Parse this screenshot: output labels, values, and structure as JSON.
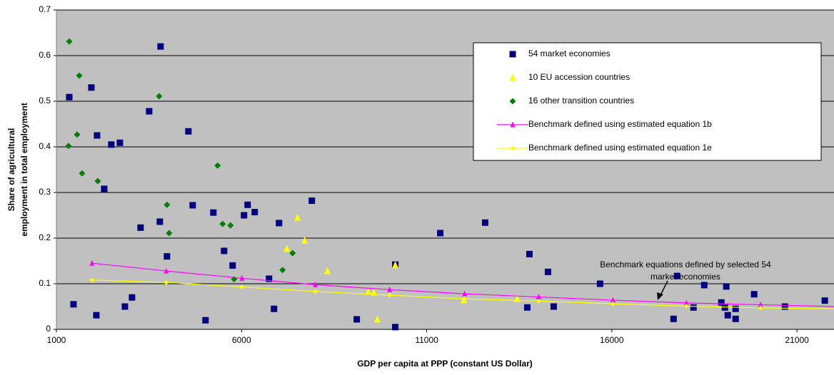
{
  "chart_data": {
    "type": "scatter",
    "xlabel": "GDP per capita at PPP (constant US Dollar)",
    "ylabel": [
      "Share of agricultural",
      "employment in total employment"
    ],
    "xlim": [
      1000,
      22000
    ],
    "xticks": [
      1000,
      6000,
      11000,
      16000,
      21000
    ],
    "ylim": [
      0,
      0.7
    ],
    "yticks": [
      0,
      0.1,
      0.2,
      0.3,
      0.4,
      0.5,
      0.6,
      0.7
    ],
    "grid": true,
    "legend": "upper right",
    "annotation": [
      "Benchmark equations defined by selected 54",
      "market economies"
    ],
    "series": [
      {
        "name": "54 market economies",
        "color": "#000080",
        "marker": "square",
        "line": false,
        "x": [
          1347,
          1462,
          1944,
          2098,
          2079,
          2291,
          2484,
          2715,
          2850,
          3042,
          3273,
          3505,
          3794,
          3813,
          3986,
          4564,
          4680,
          5027,
          5239,
          5528,
          5759,
          6067,
          6164,
          6356,
          6742,
          6877,
          7012,
          7898,
          9112,
          10152,
          10152,
          11366,
          12580,
          13717,
          13775,
          14276,
          14430,
          15682,
          17667,
          17763,
          18206,
          18495,
          18957,
          19053,
          19092,
          19131,
          19343,
          19343,
          19844,
          20674,
          21752
        ],
        "values": [
          0.509,
          0.055,
          0.53,
          0.425,
          0.031,
          0.308,
          0.405,
          0.409,
          0.05,
          0.07,
          0.223,
          0.478,
          0.236,
          0.62,
          0.16,
          0.434,
          0.272,
          0.02,
          0.256,
          0.172,
          0.14,
          0.25,
          0.273,
          0.257,
          0.111,
          0.045,
          0.233,
          0.282,
          0.022,
          0.142,
          0.005,
          0.211,
          0.234,
          0.048,
          0.165,
          0.126,
          0.05,
          0.1,
          0.023,
          0.117,
          0.048,
          0.097,
          0.059,
          0.048,
          0.094,
          0.031,
          0.023,
          0.045,
          0.077,
          0.05,
          0.063
        ]
      },
      {
        "name": "10 EU accession countries",
        "color": "#ffff00",
        "marker": "triangle",
        "line": false,
        "x": [
          7513,
          7705,
          7223,
          8320,
          9420,
          9574,
          9670,
          10152,
          12002,
          13447
        ],
        "values": [
          0.245,
          0.195,
          0.177,
          0.128,
          0.083,
          0.081,
          0.022,
          0.141,
          0.064,
          0.067
        ]
      },
      {
        "name": "16 other transition countries",
        "color": "#008000",
        "marker": "diamond",
        "line": false,
        "x": [
          1347,
          1617,
          1559,
          1328,
          1693,
          2117,
          3775,
          3986,
          4044,
          5354,
          5489,
          5701,
          5798,
          7108,
          7378
        ],
        "values": [
          0.631,
          0.556,
          0.427,
          0.402,
          0.342,
          0.325,
          0.511,
          0.273,
          0.211,
          0.359,
          0.231,
          0.228,
          0.11,
          0.13,
          0.167
        ]
      },
      {
        "name": "Benchmark defined using estimated equation 1b",
        "color": "#ff00ff",
        "marker": "triangle",
        "line": true,
        "x": [
          1963,
          3967,
          6010,
          7994,
          9998,
          12021,
          14025,
          16029,
          18013,
          20017,
          22000
        ],
        "values": [
          0.145,
          0.128,
          0.112,
          0.098,
          0.087,
          0.078,
          0.071,
          0.064,
          0.058,
          0.054,
          0.05
        ]
      },
      {
        "name": "Benchmark defined using estimated equation 1e",
        "color": "#ffff00",
        "marker": "diamond",
        "line": true,
        "x": [
          1963,
          3967,
          6010,
          7994,
          9998,
          12021,
          14025,
          16029,
          18013,
          20017,
          22000
        ],
        "values": [
          0.108,
          0.103,
          0.093,
          0.083,
          0.075,
          0.067,
          0.062,
          0.056,
          0.051,
          0.047,
          0.045
        ]
      }
    ]
  }
}
